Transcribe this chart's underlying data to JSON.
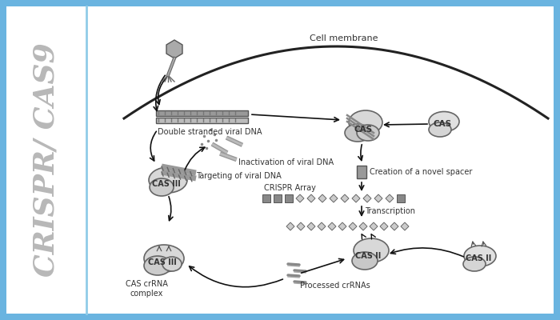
{
  "border_color": "#6ab4e0",
  "left_panel_text": "CRISPR/ CAS9",
  "left_panel_text_color": "#b8b8b8",
  "label_color": "#333333",
  "gray_dark": "#888888",
  "gray_mid": "#aaaaaa",
  "gray_light": "#cccccc",
  "gray_lighter": "#dddddd",
  "gray_edge": "#666666",
  "white": "#ffffff",
  "black": "#111111",
  "labels": {
    "cell_membrane": "Cell membrane",
    "double_stranded": "Double stranded viral DNA",
    "inactivation": "Inactivation of viral DNA",
    "novel_spacer": "Creation of a novel spacer",
    "crispr_array": "CRISPR Array",
    "transcription": "Transcription",
    "targeting": "Targeting of viral DNA",
    "cas_complex": "CAS crRNA\ncomplex",
    "processed": "Processed crRNAs"
  }
}
